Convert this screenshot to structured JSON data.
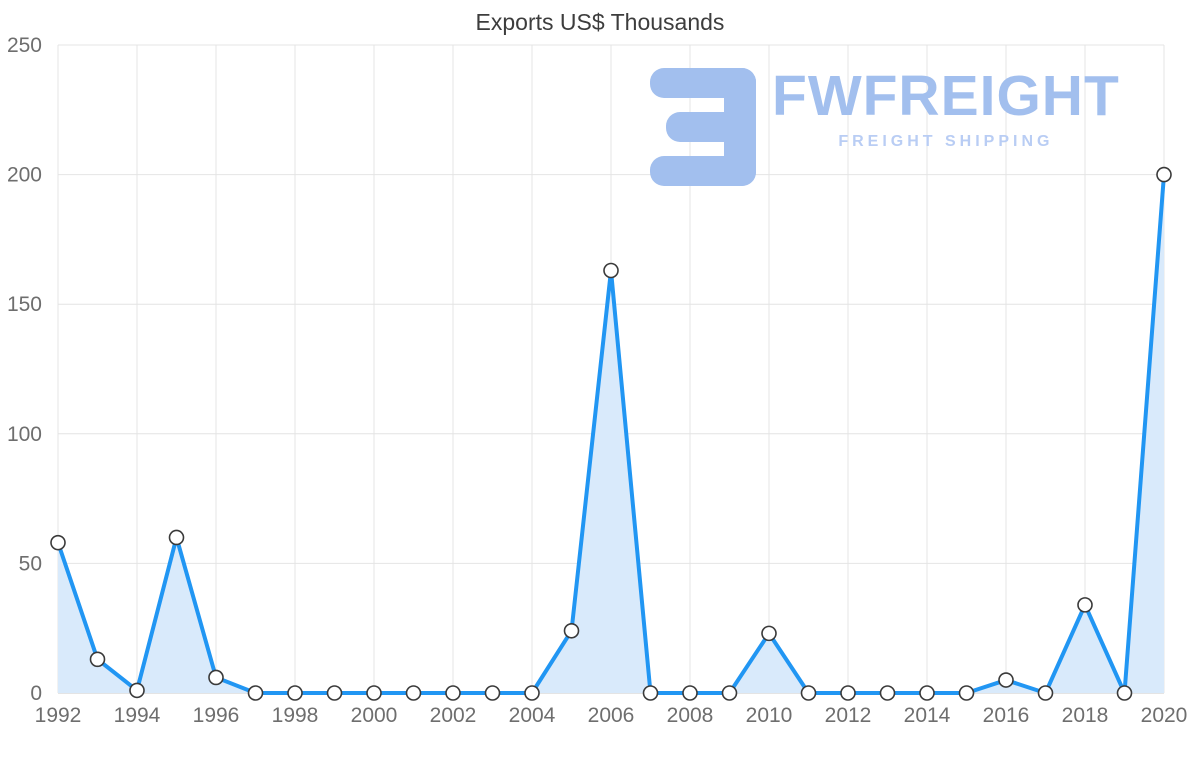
{
  "logo": {
    "brand": "FWFREIGHT",
    "tagline": "FREIGHT SHIPPING",
    "color": "#a2bfee",
    "tagline_color": "#b9cdf4"
  },
  "chart_data": {
    "type": "area",
    "title": "Exports US$ Thousands",
    "x": [
      1992,
      1993,
      1994,
      1995,
      1996,
      1997,
      1998,
      1999,
      2000,
      2001,
      2002,
      2003,
      2004,
      2005,
      2006,
      2007,
      2008,
      2009,
      2010,
      2011,
      2012,
      2013,
      2014,
      2015,
      2016,
      2017,
      2018,
      2019,
      2020
    ],
    "values": [
      58,
      13,
      1,
      60,
      6,
      0,
      0,
      0,
      0,
      0,
      0,
      0,
      0,
      24,
      163,
      0,
      0,
      0,
      23,
      0,
      0,
      0,
      0,
      0,
      5,
      0,
      34,
      0,
      200
    ],
    "x_ticks": [
      1992,
      1994,
      1996,
      1998,
      2000,
      2002,
      2004,
      2006,
      2008,
      2010,
      2012,
      2014,
      2016,
      2018,
      2020
    ],
    "y_ticks": [
      0,
      50,
      100,
      150,
      200,
      250
    ],
    "xlim": [
      1992,
      2020
    ],
    "ylim": [
      0,
      250
    ],
    "grid": true,
    "legend": false,
    "marker": "circle-white",
    "line_color": "#2196f3",
    "fill_color": "#d9eafb",
    "grid_color": "#e4e4e4",
    "axis_color": "#c9c9c9",
    "tick_color": "#6e6e6e",
    "marker_stroke": "#3a3a3a"
  }
}
